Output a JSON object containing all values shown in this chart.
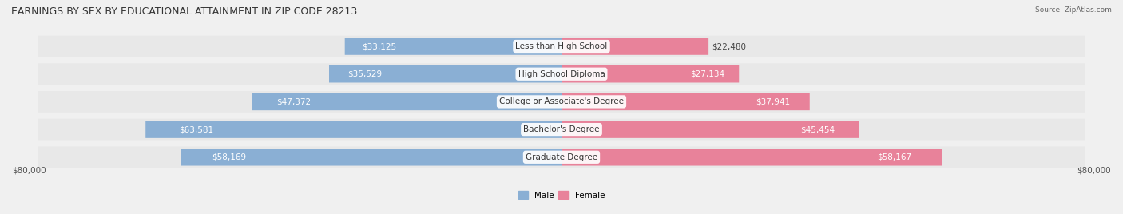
{
  "title": "EARNINGS BY SEX BY EDUCATIONAL ATTAINMENT IN ZIP CODE 28213",
  "source": "Source: ZipAtlas.com",
  "categories": [
    "Less than High School",
    "High School Diploma",
    "College or Associate's Degree",
    "Bachelor's Degree",
    "Graduate Degree"
  ],
  "male_values": [
    33125,
    35529,
    47372,
    63581,
    58169
  ],
  "female_values": [
    22480,
    27134,
    37941,
    45454,
    58167
  ],
  "male_color": "#8aafd4",
  "female_color": "#e8829a",
  "max_value": 80000,
  "bg_color": "#f0f0f0",
  "bar_bg_color": "#e0e0e0",
  "title_fontsize": 9,
  "label_fontsize": 7.5,
  "category_fontsize": 7.5,
  "axis_label": "$80,000"
}
